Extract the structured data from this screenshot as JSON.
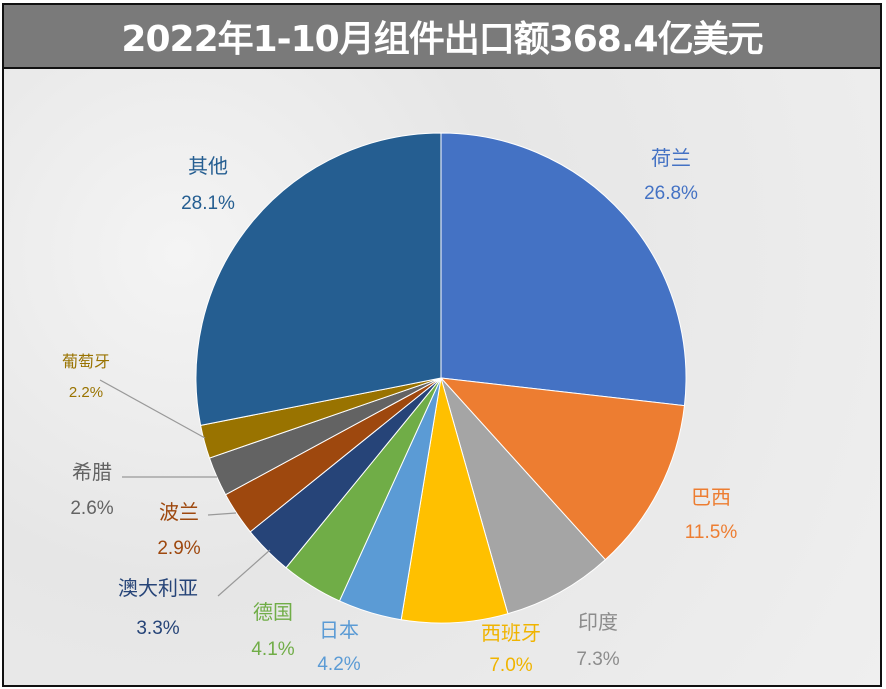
{
  "chart_data": {
    "type": "pie",
    "title": "2022年1-10月组件出口额368.4亿美元",
    "start_angle": "12 o'clock",
    "direction": "clockwise",
    "slices": [
      {
        "label": "荷兰",
        "value": 26.8,
        "display": "26.8%",
        "color": "#4472C4"
      },
      {
        "label": "巴西",
        "value": 11.5,
        "display": "11.5%",
        "color": "#ED7D31"
      },
      {
        "label": "印度",
        "value": 7.3,
        "display": "7.3%",
        "color": "#A5A5A5"
      },
      {
        "label": "西班牙",
        "value": 7.0,
        "display": "7.0%",
        "color": "#FFC000"
      },
      {
        "label": "日本",
        "value": 4.2,
        "display": "4.2%",
        "color": "#5B9BD5"
      },
      {
        "label": "德国",
        "value": 4.1,
        "display": "4.1%",
        "color": "#70AD47"
      },
      {
        "label": "澳大利亚",
        "value": 3.3,
        "display": "3.3%",
        "color": "#264478"
      },
      {
        "label": "波兰",
        "value": 2.9,
        "display": "2.9%",
        "color": "#9E480E"
      },
      {
        "label": "希腊",
        "value": 2.6,
        "display": "2.6%",
        "color": "#636363"
      },
      {
        "label": "葡萄牙",
        "value": 2.2,
        "display": "2.2%",
        "color": "#997300"
      },
      {
        "label": "其他",
        "value": 28.1,
        "display": "28.1%",
        "color": "#255E91"
      }
    ]
  }
}
